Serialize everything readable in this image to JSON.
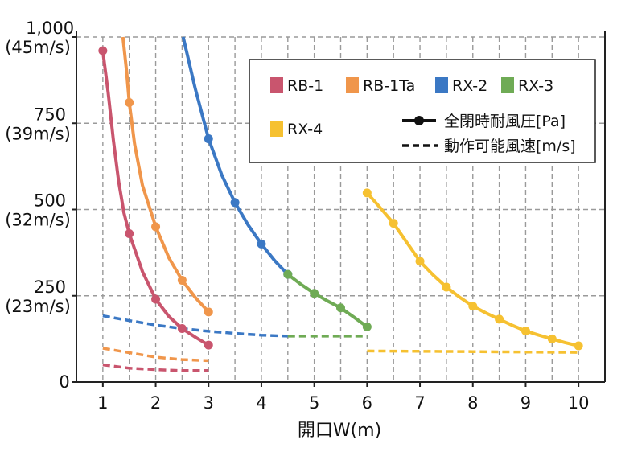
{
  "chart_data": {
    "type": "line",
    "title": "",
    "xlabel": "開口W(m)",
    "ylabel": "",
    "xlim": [
      0.5,
      10.5
    ],
    "ylim": [
      0,
      1000
    ],
    "grid": true,
    "legend_position": "top-right",
    "x_ticks": [
      1,
      2,
      3,
      4,
      5,
      6,
      7,
      8,
      9,
      10
    ],
    "y_ticks": [
      {
        "value": 0,
        "label": "0",
        "sublabel": ""
      },
      {
        "value": 250,
        "label": "250",
        "sublabel": "(23m/s)"
      },
      {
        "value": 500,
        "label": "500",
        "sublabel": "(32m/s)"
      },
      {
        "value": 750,
        "label": "750",
        "sublabel": "(39m/s)"
      },
      {
        "value": 1000,
        "label": "1,000",
        "sublabel": "(45m/s)"
      }
    ],
    "style_legend": {
      "solid": "全閉時耐風圧[Pa]",
      "dashed": "動作可能風速[m/s]"
    },
    "series": [
      {
        "name": "RB-1",
        "color": "#c9556e",
        "pressure": [
          [
            1,
            960
          ],
          [
            1.5,
            430
          ],
          [
            2,
            240
          ],
          [
            2.5,
            155
          ],
          [
            3,
            107
          ]
        ],
        "pressure_curve": [
          [
            1,
            960
          ],
          [
            1.1,
            840
          ],
          [
            1.2,
            700
          ],
          [
            1.3,
            580
          ],
          [
            1.4,
            490
          ],
          [
            1.5,
            430
          ],
          [
            1.75,
            320
          ],
          [
            2,
            240
          ],
          [
            2.25,
            190
          ],
          [
            2.5,
            155
          ],
          [
            2.75,
            130
          ],
          [
            3,
            107
          ]
        ],
        "speed": [
          [
            1,
            50
          ],
          [
            1.5,
            40
          ],
          [
            2,
            36
          ],
          [
            2.5,
            33
          ],
          [
            3,
            33
          ]
        ]
      },
      {
        "name": "RB-1Ta",
        "color": "#f0964b",
        "pressure": [
          [
            1.5,
            810
          ],
          [
            2,
            450
          ],
          [
            2.5,
            295
          ],
          [
            3,
            203
          ]
        ],
        "pressure_curve": [
          [
            1.38,
            1000
          ],
          [
            1.45,
            900
          ],
          [
            1.5,
            810
          ],
          [
            1.6,
            690
          ],
          [
            1.75,
            570
          ],
          [
            2,
            450
          ],
          [
            2.25,
            360
          ],
          [
            2.5,
            295
          ],
          [
            2.75,
            245
          ],
          [
            3,
            203
          ]
        ],
        "speed": [
          [
            1,
            98
          ],
          [
            1.5,
            85
          ],
          [
            2,
            72
          ],
          [
            2.5,
            65
          ],
          [
            3,
            62
          ]
        ]
      },
      {
        "name": "RX-2",
        "color": "#3b78c4",
        "pressure": [
          [
            3,
            705
          ],
          [
            3.5,
            520
          ],
          [
            4,
            400
          ],
          [
            4.5,
            312
          ]
        ],
        "pressure_curve": [
          [
            2.52,
            1000
          ],
          [
            2.75,
            850
          ],
          [
            3,
            705
          ],
          [
            3.25,
            600
          ],
          [
            3.5,
            520
          ],
          [
            3.75,
            455
          ],
          [
            4,
            400
          ],
          [
            4.25,
            352
          ],
          [
            4.5,
            312
          ]
        ],
        "speed": [
          [
            1,
            192
          ],
          [
            1.5,
            178
          ],
          [
            2,
            165
          ],
          [
            2.5,
            155
          ],
          [
            3,
            147
          ],
          [
            3.5,
            141
          ],
          [
            4,
            136
          ],
          [
            4.5,
            133
          ]
        ]
      },
      {
        "name": "RX-3",
        "color": "#6fab55",
        "pressure": [
          [
            4.5,
            312
          ],
          [
            5,
            257
          ],
          [
            5.5,
            215
          ],
          [
            6,
            160
          ]
        ],
        "pressure_curve": [
          [
            4.5,
            312
          ],
          [
            4.75,
            283
          ],
          [
            5,
            257
          ],
          [
            5.25,
            235
          ],
          [
            5.5,
            215
          ],
          [
            5.75,
            188
          ],
          [
            6,
            160
          ]
        ],
        "speed": [
          [
            4.5,
            133
          ],
          [
            5,
            133
          ],
          [
            5.5,
            133
          ],
          [
            6,
            133
          ]
        ]
      },
      {
        "name": "RX-4",
        "color": "#f6c131",
        "pressure": [
          [
            6,
            548
          ],
          [
            6.5,
            460
          ],
          [
            7,
            350
          ],
          [
            7.5,
            275
          ],
          [
            8,
            220
          ],
          [
            8.5,
            182
          ],
          [
            9,
            148
          ],
          [
            9.5,
            125
          ],
          [
            10,
            105
          ]
        ],
        "pressure_curve": [
          [
            6,
            548
          ],
          [
            6.25,
            505
          ],
          [
            6.5,
            460
          ],
          [
            6.75,
            405
          ],
          [
            7,
            350
          ],
          [
            7.25,
            310
          ],
          [
            7.5,
            275
          ],
          [
            7.75,
            246
          ],
          [
            8,
            220
          ],
          [
            8.25,
            200
          ],
          [
            8.5,
            182
          ],
          [
            8.75,
            164
          ],
          [
            9,
            148
          ],
          [
            9.25,
            136
          ],
          [
            9.5,
            125
          ],
          [
            9.75,
            114
          ],
          [
            10,
            105
          ]
        ],
        "speed": [
          [
            6,
            90
          ],
          [
            7,
            89
          ],
          [
            8,
            88
          ],
          [
            9,
            87
          ],
          [
            10,
            86
          ]
        ]
      }
    ]
  }
}
